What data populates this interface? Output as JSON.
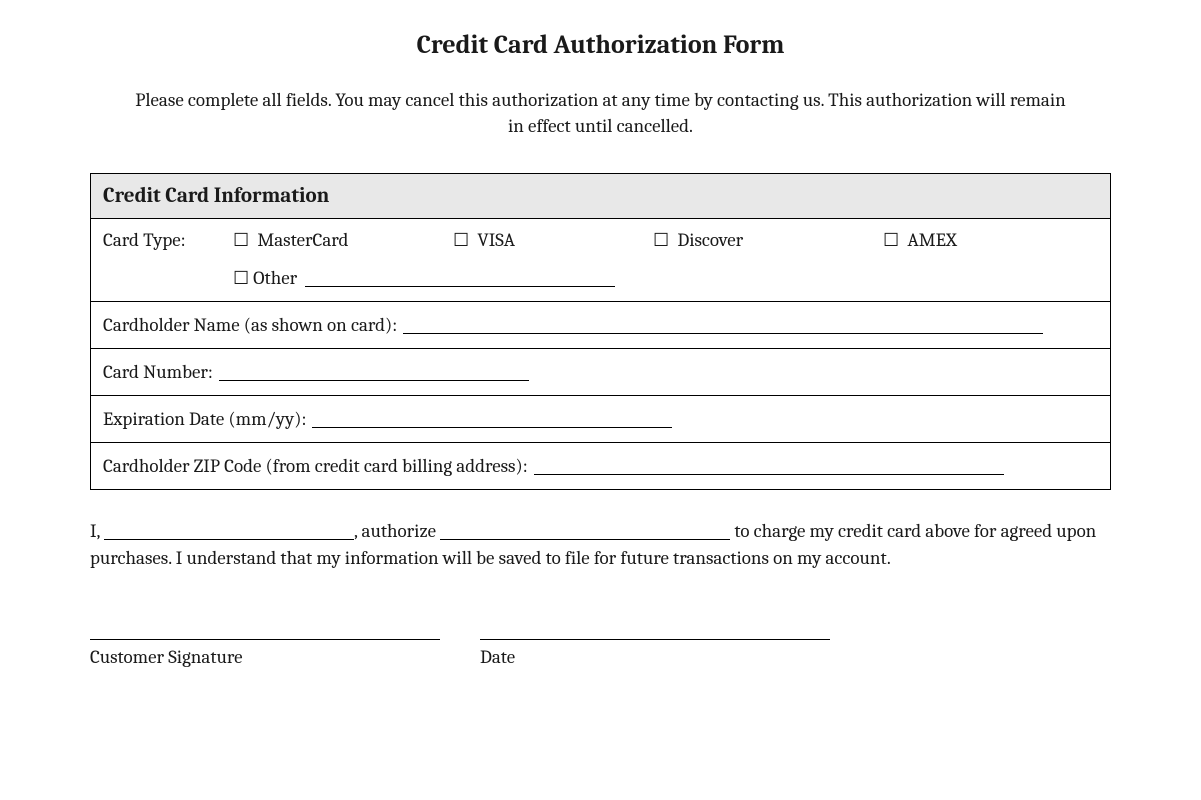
{
  "title": "Credit Card Authorization Form",
  "instructions": "Please complete all fields. You may cancel this authorization at any time by contacting us. This authorization will remain in effect until cancelled.",
  "section_header": "Credit Card Information",
  "card_type": {
    "label": "Card Type:",
    "options": {
      "mastercard": "MasterCard",
      "visa": "VISA",
      "discover": "Discover",
      "amex": "AMEX",
      "other": "Other"
    }
  },
  "fields": {
    "cardholder_name": "Cardholder Name (as shown on card):",
    "card_number": "Card Number:",
    "expiration": "Expiration Date (mm/yy):",
    "zip": "Cardholder ZIP Code (from credit card billing address):"
  },
  "authorization": {
    "prefix": "I,",
    "mid1": ", authorize",
    "mid2": " to charge my credit card above for agreed upon purchases. I understand that my information will be saved to file for future transactions on my account."
  },
  "signature": {
    "customer": "Customer Signature",
    "date": "Date"
  },
  "checkbox_glyph": "☐",
  "style": {
    "background_color": "#ffffff",
    "text_color": "#1a1a1a",
    "border_color": "#000000",
    "header_bg": "#e8e8e8",
    "title_fontsize": 26,
    "body_fontsize": 19,
    "section_header_fontsize": 21,
    "font_family": "Cambria, Georgia, serif"
  }
}
